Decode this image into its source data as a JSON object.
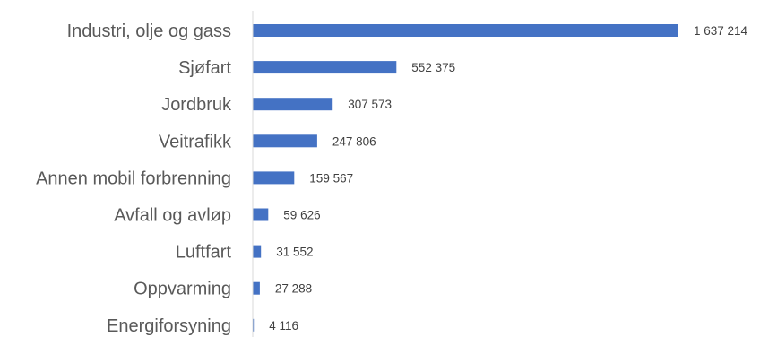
{
  "colors": {
    "bar": "#4472c4",
    "axis": "#d9d9d9",
    "category_text": "#595959",
    "value_text": "#404040"
  },
  "chart_data": {
    "type": "bar",
    "orientation": "horizontal",
    "categories": [
      "Industri, olje og gass",
      "Sjøfart",
      "Jordbruk",
      "Veitrafikk",
      "Annen mobil forbrenning",
      "Avfall og avløp",
      "Luftfart",
      "Oppvarming",
      "Energiforsyning"
    ],
    "values": [
      1637214,
      552375,
      307573,
      247806,
      159567,
      59626,
      31552,
      27288,
      4116
    ],
    "value_labels": [
      "1 637 214",
      "552 375",
      "307 573",
      "247 806",
      "159 567",
      "59 626",
      "31 552",
      "27 288",
      "4 116"
    ],
    "xlim": [
      0,
      1637214
    ],
    "grid": false,
    "legend": "none",
    "data_labels": "outside-end"
  }
}
